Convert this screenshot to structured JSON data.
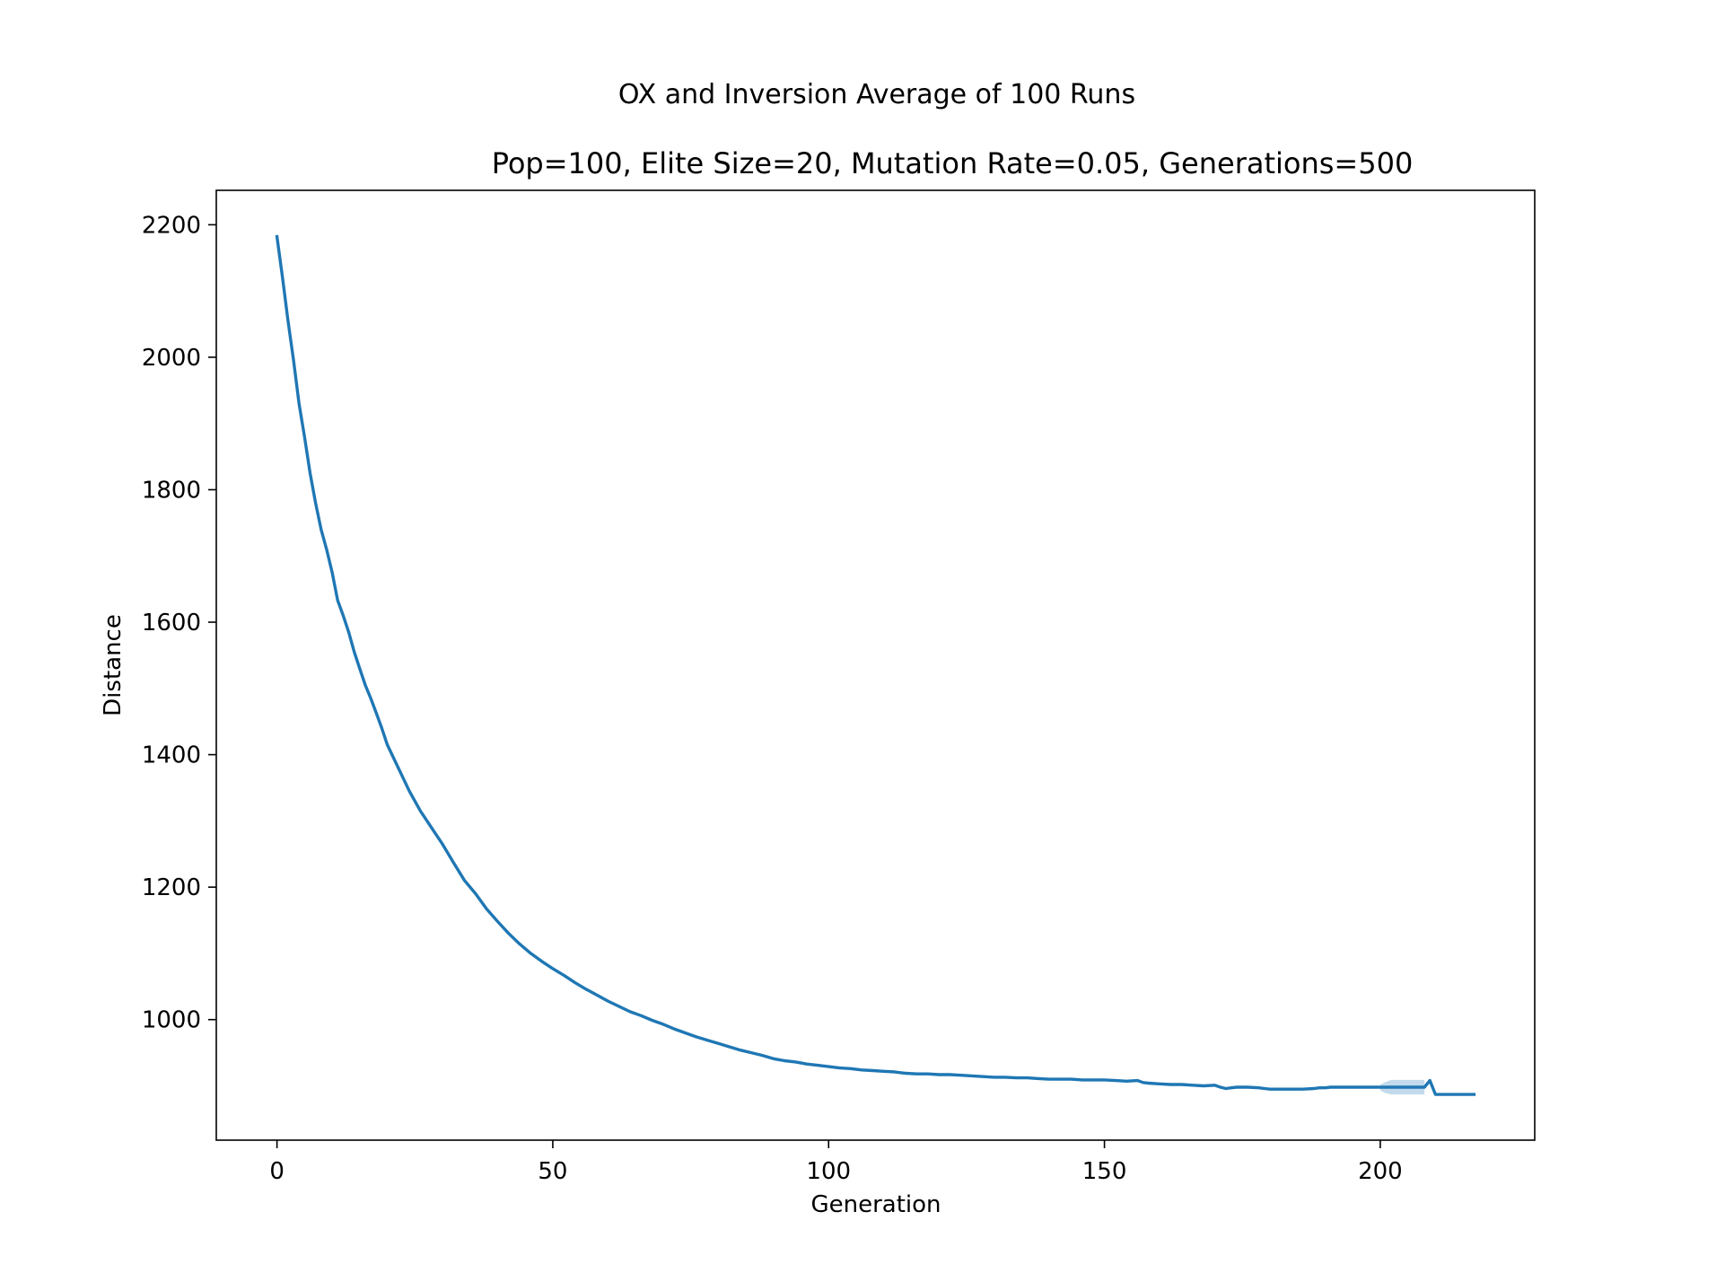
{
  "chart_data": {
    "type": "line",
    "suptitle": "OX and Inversion Average of 100 Runs",
    "title": "Pop=100, Elite Size=20, Mutation Rate=0.05, Generations=500",
    "xlabel": "Generation",
    "ylabel": "Distance",
    "xlim": [
      -11,
      228
    ],
    "ylim": [
      818,
      2252
    ],
    "xticks": [
      0,
      50,
      100,
      150,
      200
    ],
    "xtick_labels": [
      "0",
      "50",
      "100",
      "150",
      "200"
    ],
    "yticks": [
      1000,
      1200,
      1400,
      1600,
      1800,
      2000,
      2200
    ],
    "ytick_labels": [
      "1000",
      "1200",
      "1400",
      "1600",
      "1800",
      "2000",
      "2200"
    ],
    "grid": false,
    "series_color": "#1f77b4",
    "band_color": "#aecde6",
    "series": [
      {
        "x": [
          0,
          1,
          2,
          3,
          4,
          5,
          6,
          7,
          8,
          9,
          10,
          11,
          12,
          13,
          14,
          15,
          16,
          17,
          18,
          19,
          20,
          22,
          24,
          26,
          28,
          30,
          32,
          34,
          36,
          38,
          40,
          42,
          44,
          46,
          48,
          50,
          52,
          54,
          56,
          58,
          60,
          62,
          64,
          66,
          68,
          70,
          72,
          74,
          76,
          78,
          80,
          82,
          84,
          86,
          88,
          90,
          92,
          94,
          96,
          98,
          100,
          102,
          104,
          106,
          108,
          110,
          112,
          114,
          116,
          118,
          120,
          122,
          124,
          126,
          128,
          130,
          132,
          134,
          136,
          138,
          140,
          142,
          144,
          146,
          148,
          150,
          152,
          154,
          156,
          157,
          158,
          160,
          162,
          164,
          166,
          168,
          170,
          171,
          172,
          173,
          174,
          176,
          178,
          179,
          180,
          182,
          184,
          186,
          188,
          189,
          190,
          191,
          192,
          194,
          196,
          198,
          200,
          202,
          204,
          206,
          208,
          209,
          210,
          212,
          214,
          216,
          217
        ],
        "y": [
          2182,
          2120,
          2055,
          1995,
          1930,
          1880,
          1825,
          1780,
          1740,
          1710,
          1675,
          1633,
          1610,
          1585,
          1555,
          1530,
          1505,
          1485,
          1463,
          1440,
          1415,
          1380,
          1345,
          1315,
          1290,
          1265,
          1237,
          1210,
          1190,
          1167,
          1148,
          1130,
          1114,
          1100,
          1088,
          1077,
          1067,
          1056,
          1046,
          1037,
          1028,
          1020,
          1012,
          1006,
          999,
          993,
          986,
          980,
          974,
          969,
          964,
          959,
          954,
          950,
          946,
          941,
          938,
          936,
          933,
          931,
          929,
          927,
          926,
          924,
          923,
          922,
          921,
          919,
          918,
          918,
          917,
          917,
          916,
          915,
          914,
          913,
          913,
          912,
          912,
          911,
          910,
          910,
          910,
          909,
          909,
          909,
          908,
          907,
          908,
          905,
          904,
          903,
          902,
          902,
          901,
          900,
          901,
          898,
          896,
          897,
          898,
          898,
          897,
          896,
          895,
          895,
          895,
          895,
          896,
          897,
          897,
          898,
          898,
          898,
          898,
          898,
          898,
          898,
          898,
          898,
          898,
          908,
          887,
          887,
          887,
          887,
          887
        ],
        "band_x": [
          200,
          201,
          202,
          204,
          206,
          208
        ],
        "band_lower": [
          893,
          889,
          887,
          887,
          887,
          887
        ],
        "band_upper": [
          902,
          906,
          909,
          909,
          909,
          909
        ]
      }
    ]
  }
}
